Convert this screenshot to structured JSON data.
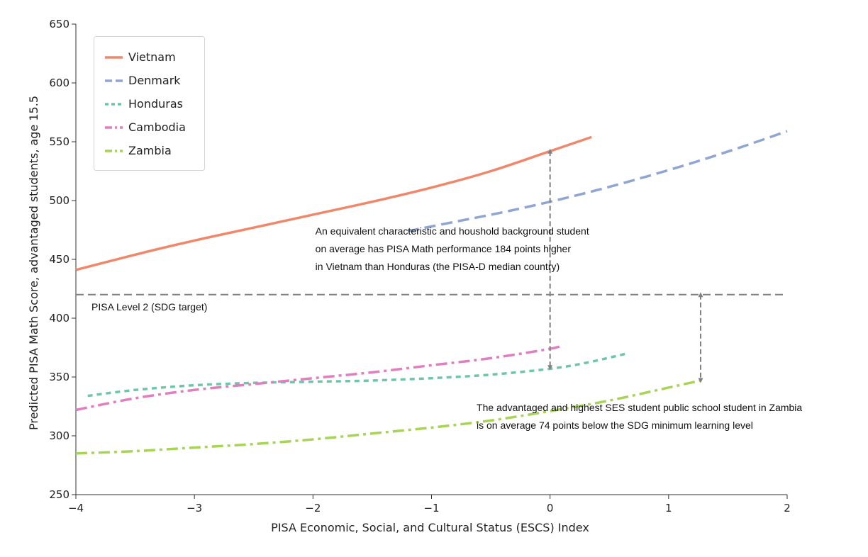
{
  "chart_data": {
    "type": "line",
    "title": "",
    "xlabel": "PISA Economic, Social, and Cultural Status (ESCS) Index",
    "ylabel": "Predicted PISA Math Score, advantaged students, age 15.5",
    "xlim": [
      -4,
      2
    ],
    "ylim": [
      250,
      650
    ],
    "xticks": [
      -4,
      -3,
      -2,
      -1,
      0,
      1,
      2
    ],
    "yticks": [
      250,
      300,
      350,
      400,
      450,
      500,
      550,
      600,
      650
    ],
    "grid": false,
    "legend_position": "top-left",
    "series": [
      {
        "name": "Vietnam",
        "color": "#f0876a",
        "dash": "solid",
        "x": [
          -4,
          -3.5,
          -3,
          -2.5,
          -2,
          -1.5,
          -1,
          -0.5,
          0,
          0.35
        ],
        "y": [
          441,
          454,
          466,
          477,
          488,
          499,
          511,
          525,
          542,
          554
        ]
      },
      {
        "name": "Denmark",
        "color": "#8fa5d2",
        "dash": "dashed",
        "x": [
          -1.2,
          -0.8,
          -0.4,
          0,
          0.4,
          0.8,
          1.2,
          1.6,
          2.0
        ],
        "y": [
          474,
          482,
          490,
          499,
          509,
          520,
          532,
          545,
          559
        ]
      },
      {
        "name": "Honduras",
        "color": "#6ec6a8",
        "dash": "dotted",
        "x": [
          -3.9,
          -3.5,
          -3,
          -2.5,
          -2,
          -1.5,
          -1,
          -0.5,
          0,
          0.3,
          0.65
        ],
        "y": [
          334,
          339,
          343,
          345,
          346,
          347,
          349,
          352,
          357,
          362,
          370
        ]
      },
      {
        "name": "Cambodia",
        "color": "#e07fbf",
        "dash": "dashdot",
        "x": [
          -4,
          -3.5,
          -3,
          -2.5,
          -2,
          -1.5,
          -1,
          -0.5,
          0,
          0.1
        ],
        "y": [
          322,
          332,
          339,
          344,
          349,
          354,
          360,
          366,
          374,
          377
        ]
      },
      {
        "name": "Zambia",
        "color": "#a8d456",
        "dash": "dashdot",
        "x": [
          -4,
          -3.5,
          -3,
          -2.5,
          -2,
          -1.5,
          -1,
          -0.5,
          0,
          0.5,
          1.0,
          1.27
        ],
        "y": [
          285,
          287,
          290,
          293,
          297,
          302,
          307,
          313,
          321,
          330,
          341,
          347
        ]
      }
    ],
    "reference_line": {
      "y": 420,
      "label": "PISA Level 2 (SDG target)",
      "color": "#808080"
    },
    "arrows": [
      {
        "x": 0,
        "y_from": 542,
        "y_to": 358
      },
      {
        "x": 1.27,
        "y_from": 420,
        "y_to": 347
      }
    ],
    "annotations": [
      {
        "x": -1.98,
        "y": 471,
        "lines": [
          "An equivalent characteristic and houshold background student",
          "on average has PISA Math performance 184 points higher",
          "in Vietnam than Honduras (the PISA-D median country)"
        ]
      },
      {
        "x": -0.62,
        "y": 321,
        "lines": [
          "The advantaged and highest SES student public school student in Zambia",
          "is on average 74 points below the SDG minimum learning level"
        ]
      }
    ]
  }
}
